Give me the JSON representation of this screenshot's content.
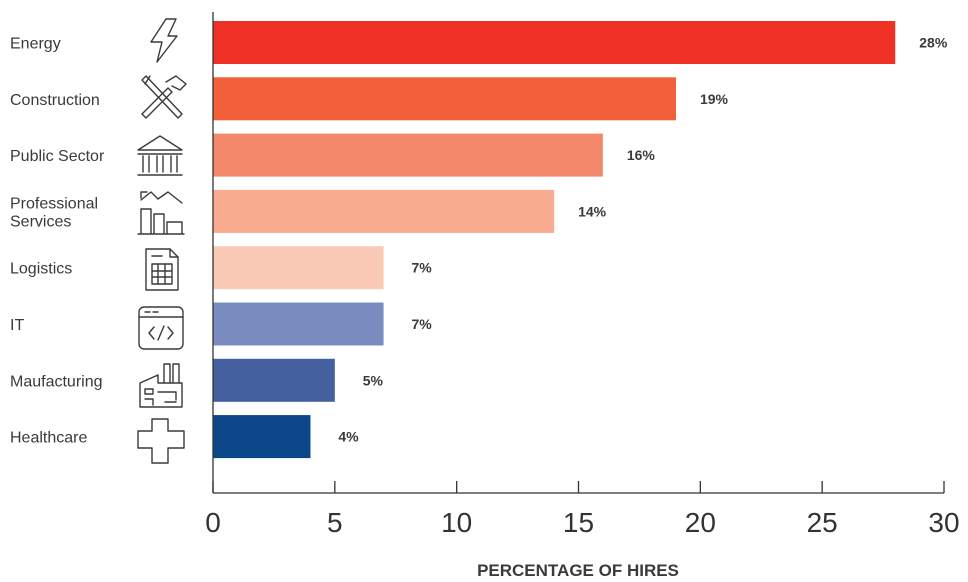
{
  "chart_data": {
    "type": "bar",
    "orientation": "horizontal",
    "categories": [
      "Energy",
      "Construction",
      "Public Sector",
      "Professional Services",
      "Logistics",
      "IT",
      "Maufacturing",
      "Healthcare"
    ],
    "category_display": [
      [
        "Energy"
      ],
      [
        "Construction"
      ],
      [
        "Public Sector"
      ],
      [
        "Professional",
        "Services"
      ],
      [
        "Logistics"
      ],
      [
        "IT"
      ],
      [
        "Maufacturing"
      ],
      [
        "Healthcare"
      ]
    ],
    "values": [
      28,
      19,
      16,
      14,
      7,
      7,
      5,
      4
    ],
    "value_labels": [
      "28%",
      "19%",
      "16%",
      "14%",
      "7%",
      "7%",
      "5%",
      "4%"
    ],
    "colors": [
      "#ee3124",
      "#f2603a",
      "#f4886a",
      "#f8ab8e",
      "#fbcab7",
      "#7b8cc0",
      "#44609f",
      "#0b4789"
    ],
    "icons": [
      "lightning-icon",
      "tools-icon",
      "government-building-icon",
      "chart-buildings-icon",
      "document-table-icon",
      "code-window-icon",
      "factory-icon",
      "medical-cross-icon"
    ],
    "xlim": [
      0,
      30
    ],
    "xticks": [
      0,
      5,
      10,
      15,
      20,
      25,
      30
    ],
    "xlabel": "PERCENTAGE OF HIRES",
    "title": ""
  }
}
